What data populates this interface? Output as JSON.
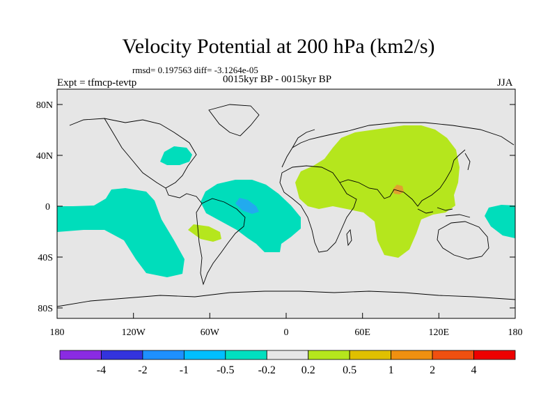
{
  "header": {
    "title": "Velocity Potential at 200 hPa (km2/s)",
    "stats": "rmsd= 0.197563 diff= -3.1264e-05",
    "experiment": "Expt = tfmcp-tevtp",
    "period": "0015kyr BP - 0015kyr BP",
    "season": "JJA"
  },
  "axes": {
    "lat_labels": [
      "80N",
      "40N",
      "0",
      "40S",
      "80S"
    ],
    "lon_labels": [
      "180",
      "120W",
      "60W",
      "0",
      "60E",
      "120E",
      "180"
    ]
  },
  "colorbar": {
    "colors": [
      "#8a2be2",
      "#3333dd",
      "#1e90ff",
      "#00bfff",
      "#00e0c0",
      "#e6e6e6",
      "#b5e61d",
      "#e0c000",
      "#f09010",
      "#f05010",
      "#ee0000"
    ],
    "labels": [
      "-4",
      "-2",
      "-1",
      "-0.5",
      "-0.2",
      "0.2",
      "0.5",
      "1",
      "2",
      "4"
    ]
  },
  "map_colors": {
    "background": "#e6e6e6",
    "negative_weak": "#00ddbb",
    "negative_mid": "#22aaee",
    "positive_weak": "#b5e61d",
    "positive_mid": "#e0a030"
  }
}
